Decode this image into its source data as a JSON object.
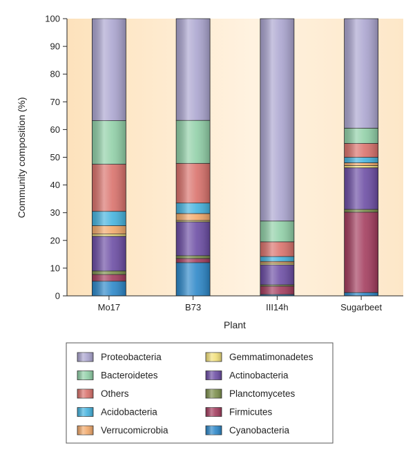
{
  "chart_data": {
    "type": "bar",
    "stacked": true,
    "title": "",
    "xlabel": "Plant",
    "ylabel": "Community composition (%)",
    "ylim": [
      0,
      100
    ],
    "yticks": [
      0,
      10,
      20,
      30,
      40,
      50,
      60,
      70,
      80,
      90,
      100
    ],
    "categories": [
      "Mo17",
      "B73",
      "III14h",
      "Sugarbeet"
    ],
    "legend_position": "bottom",
    "series": [
      {
        "name": "Cyanobacteria",
        "color": "#2a86c8",
        "values": [
          5.3,
          12.0,
          0.5,
          1.2
        ]
      },
      {
        "name": "Firmicutes",
        "color": "#a23a5c",
        "values": [
          2.4,
          1.5,
          3.0,
          29.0
        ]
      },
      {
        "name": "Planctomycetes",
        "color": "#7b8e4a",
        "values": [
          1.3,
          1.0,
          0.5,
          1.0
        ]
      },
      {
        "name": "Actinobacteria",
        "color": "#6a4ba3",
        "values": [
          12.5,
          12.2,
          7.2,
          15.0
        ]
      },
      {
        "name": "Gemmatimonadetes",
        "color": "#f2e07a",
        "values": [
          0.8,
          0.5,
          0.6,
          0.8
        ]
      },
      {
        "name": "Verrucomicrobia",
        "color": "#f2a96a",
        "values": [
          3.0,
          2.5,
          0.6,
          1.0
        ]
      },
      {
        "name": "Acidobacteria",
        "color": "#43b2de",
        "values": [
          5.2,
          3.8,
          1.8,
          2.0
        ]
      },
      {
        "name": "Others",
        "color": "#d9706a",
        "values": [
          17.0,
          14.3,
          5.3,
          5.0
        ]
      },
      {
        "name": "Bacteroidetes",
        "color": "#8fcfa6",
        "values": [
          15.7,
          15.5,
          7.5,
          5.5
        ]
      },
      {
        "name": "Proteobacteria",
        "color": "#aaa4cf",
        "values": [
          36.8,
          36.7,
          73.0,
          39.5
        ]
      }
    ],
    "legend": {
      "left": [
        "Proteobacteria",
        "Bacteroidetes",
        "Others",
        "Acidobacteria",
        "Verrucomicrobia"
      ],
      "right": [
        "Gemmatimonadetes",
        "Actinobacteria",
        "Planctomycetes",
        "Firmicutes",
        "Cyanobacteria"
      ]
    }
  }
}
